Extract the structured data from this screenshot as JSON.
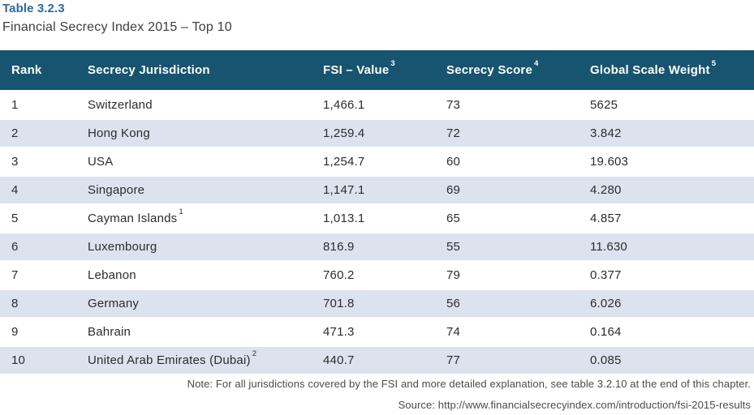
{
  "title": {
    "label": "Table 3.2.3",
    "subtitle": "Financial Secrecy Index 2015 – Top 10"
  },
  "colors": {
    "header_background": "#175470",
    "header_text": "#ffffff",
    "stripe_row": "#dce3ee",
    "title_accent": "#2b6a9d",
    "body_text": "#2c2c2c",
    "note_text": "#4b4b4b"
  },
  "table": {
    "columns": [
      {
        "label": "Rank",
        "sup": ""
      },
      {
        "label": "Secrecy Jurisdiction",
        "sup": ""
      },
      {
        "label": "FSI – Value",
        "sup": "3"
      },
      {
        "label": "Secrecy Score",
        "sup": "4"
      },
      {
        "label": "Global Scale Weight",
        "sup": "5"
      }
    ],
    "rows": [
      {
        "rank": "1",
        "jurisdiction": "Switzerland",
        "jurisdiction_sup": "",
        "fsi_value": "1,466.1",
        "secrecy_score": "73",
        "global_scale_weight": "5625"
      },
      {
        "rank": "2",
        "jurisdiction": "Hong Kong",
        "jurisdiction_sup": "",
        "fsi_value": "1,259.4",
        "secrecy_score": "72",
        "global_scale_weight": "3.842"
      },
      {
        "rank": "3",
        "jurisdiction": "USA",
        "jurisdiction_sup": "",
        "fsi_value": "1,254.7",
        "secrecy_score": "60",
        "global_scale_weight": "19.603"
      },
      {
        "rank": "4",
        "jurisdiction": "Singapore",
        "jurisdiction_sup": "",
        "fsi_value": "1,147.1",
        "secrecy_score": "69",
        "global_scale_weight": "4.280"
      },
      {
        "rank": "5",
        "jurisdiction": "Cayman Islands",
        "jurisdiction_sup": "1",
        "fsi_value": "1,013.1",
        "secrecy_score": "65",
        "global_scale_weight": "4.857"
      },
      {
        "rank": "6",
        "jurisdiction": "Luxembourg",
        "jurisdiction_sup": "",
        "fsi_value": "816.9",
        "secrecy_score": "55",
        "global_scale_weight": "11.630"
      },
      {
        "rank": "7",
        "jurisdiction": "Lebanon",
        "jurisdiction_sup": "",
        "fsi_value": "760.2",
        "secrecy_score": "79",
        "global_scale_weight": "0.377"
      },
      {
        "rank": "8",
        "jurisdiction": "Germany",
        "jurisdiction_sup": "",
        "fsi_value": "701.8",
        "secrecy_score": "56",
        "global_scale_weight": "6.026"
      },
      {
        "rank": "9",
        "jurisdiction": "Bahrain",
        "jurisdiction_sup": "",
        "fsi_value": "471.3",
        "secrecy_score": "74",
        "global_scale_weight": "0.164"
      },
      {
        "rank": "10",
        "jurisdiction": "United Arab Emirates (Dubai)",
        "jurisdiction_sup": "2",
        "fsi_value": "440.7",
        "secrecy_score": "77",
        "global_scale_weight": "0.085"
      }
    ]
  },
  "footer": {
    "note": "Note: For all jurisdictions covered by the FSI and more detailed explanation, see table 3.2.10 at the end of this chapter.",
    "source": "Source: http://www.financialsecrecyindex.com/introduction/fsi-2015-results"
  }
}
